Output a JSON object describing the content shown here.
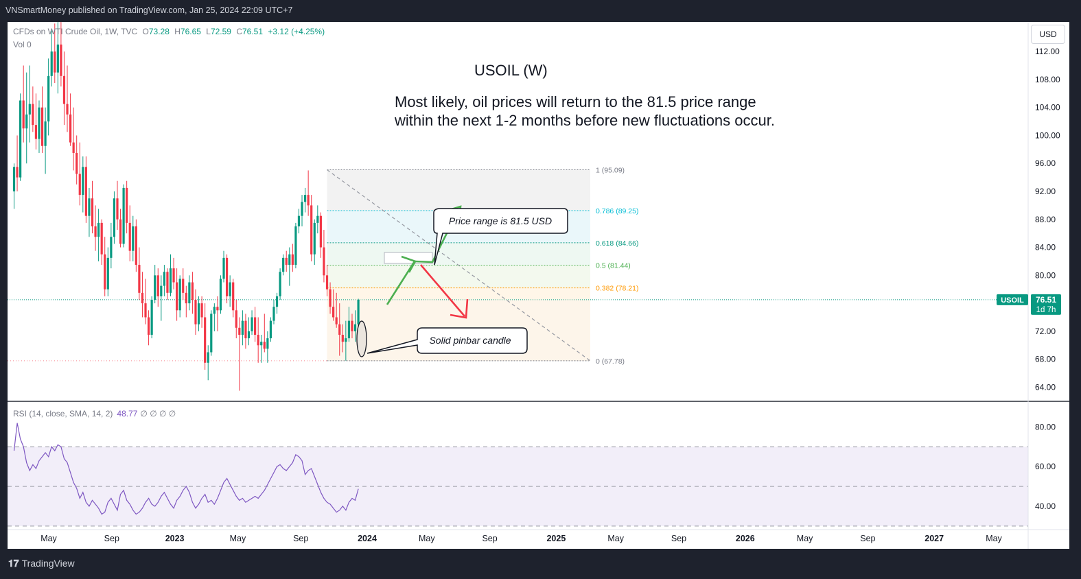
{
  "header": {
    "published": "VNSmartMoney published on TradingView.com, Jan 25, 2024 22:09 UTC+7"
  },
  "legend": {
    "symbol": "CFDs on WTI Crude Oil, 1W, TVC",
    "o_label": "O",
    "o": "73.28",
    "h_label": "H",
    "h": "76.65",
    "l_label": "L",
    "l": "72.59",
    "c_label": "C",
    "c": "76.51",
    "change": "+3.12 (+4.25%)",
    "vol": "Vol 0"
  },
  "currency_button": "USD",
  "annotation": {
    "title": "USOIL (W)",
    "line1": "Most likely, oil prices will return to the 81.5 price range",
    "line2": "within the next 1-2 months before new fluctuations occur."
  },
  "callouts": {
    "price_range": "Price range is 81.5 USD",
    "pinbar": "Solid pinbar candle"
  },
  "price_tag": {
    "symbol": "USOIL",
    "price": "76.51",
    "countdown": "1d 7h"
  },
  "rsi_legend": {
    "label": "RSI (14, close, SMA, 14, 2)",
    "value": "48.77",
    "nulls": "∅ ∅ ∅ ∅"
  },
  "footer": {
    "logo": "TradingView"
  },
  "colors": {
    "up": "#089981",
    "down": "#f23645",
    "rsi": "#7e57c2",
    "arrow_up": "#4caf50",
    "arrow_down": "#f23645"
  },
  "chart_data": {
    "type": "candlestick",
    "symbol": "USOIL",
    "interval": "1W",
    "price_axis": {
      "ticks": [
        "64.00",
        "68.00",
        "72.00",
        "76.00",
        "80.00",
        "84.00",
        "88.00",
        "92.00",
        "96.00",
        "100.00",
        "104.00",
        "108.00",
        "112.00"
      ],
      "ylim": [
        61.2,
        115.6
      ]
    },
    "time_axis": {
      "labels": [
        "May",
        "Sep",
        "2023",
        "May",
        "Sep",
        "2024",
        "May",
        "Sep",
        "2025",
        "May",
        "Sep",
        "2026",
        "May",
        "Sep",
        "2027",
        "May"
      ],
      "bold": [
        "2023",
        "2024",
        "2025",
        "2026",
        "2027"
      ]
    },
    "last_price": 76.51,
    "fibonacci": [
      {
        "level": "1",
        "price": 95.09,
        "label": "1 (95.09)",
        "color": "#787b86",
        "fill": "#f2f2f2"
      },
      {
        "level": "0.786",
        "price": 89.25,
        "label": "0.786 (89.25)",
        "color": "#00bcd4",
        "fill": "#eaf7fa"
      },
      {
        "level": "0.618",
        "price": 84.66,
        "label": "0.618 (84.66)",
        "color": "#089981",
        "fill": "#eef8f2"
      },
      {
        "level": "0.5",
        "price": 81.44,
        "label": "0.5 (81.44)",
        "color": "#4caf50",
        "fill": "#f3f9ee"
      },
      {
        "level": "0.382",
        "price": 78.21,
        "label": "0.382 (78.21)",
        "color": "#ff9800",
        "fill": "#fff6e8"
      },
      {
        "level": "0",
        "price": 67.78,
        "label": "0 (67.78)",
        "color": "#787b86",
        "fill": "#fdf5ea"
      }
    ],
    "candles": [
      {
        "o": 92.0,
        "h": 96.0,
        "l": 89.5,
        "c": 95.5
      },
      {
        "o": 95.5,
        "h": 100.0,
        "l": 92.0,
        "c": 94.0
      },
      {
        "o": 94.0,
        "h": 106.0,
        "l": 93.5,
        "c": 105.0
      },
      {
        "o": 105.0,
        "h": 110.0,
        "l": 99.0,
        "c": 101.0
      },
      {
        "o": 101.0,
        "h": 109.0,
        "l": 96.0,
        "c": 103.0
      },
      {
        "o": 103.0,
        "h": 110.0,
        "l": 99.0,
        "c": 104.5
      },
      {
        "o": 104.5,
        "h": 107.0,
        "l": 100.5,
        "c": 101.5
      },
      {
        "o": 101.5,
        "h": 106.0,
        "l": 98.0,
        "c": 99.5
      },
      {
        "o": 99.5,
        "h": 105.0,
        "l": 97.5,
        "c": 104.0
      },
      {
        "o": 104.0,
        "h": 107.0,
        "l": 97.5,
        "c": 98.5
      },
      {
        "o": 98.5,
        "h": 104.0,
        "l": 94.5,
        "c": 102.0
      },
      {
        "o": 102.0,
        "h": 111.0,
        "l": 100.0,
        "c": 108.5
      },
      {
        "o": 108.5,
        "h": 115.0,
        "l": 107.0,
        "c": 112.0
      },
      {
        "o": 112.0,
        "h": 116.0,
        "l": 107.5,
        "c": 109.0
      },
      {
        "o": 109.0,
        "h": 117.0,
        "l": 106.0,
        "c": 113.0
      },
      {
        "o": 113.0,
        "h": 117.0,
        "l": 107.0,
        "c": 108.5
      },
      {
        "o": 108.5,
        "h": 112.0,
        "l": 101.5,
        "c": 104.5
      },
      {
        "o": 104.5,
        "h": 110.0,
        "l": 100.5,
        "c": 103.0
      },
      {
        "o": 103.0,
        "h": 106.0,
        "l": 98.5,
        "c": 99.0
      },
      {
        "o": 99.0,
        "h": 104.0,
        "l": 95.0,
        "c": 97.5
      },
      {
        "o": 97.5,
        "h": 100.0,
        "l": 93.0,
        "c": 94.5
      },
      {
        "o": 94.5,
        "h": 99.0,
        "l": 90.0,
        "c": 91.5
      },
      {
        "o": 91.5,
        "h": 97.0,
        "l": 89.0,
        "c": 95.5
      },
      {
        "o": 95.5,
        "h": 97.0,
        "l": 87.5,
        "c": 88.5
      },
      {
        "o": 88.5,
        "h": 92.5,
        "l": 85.5,
        "c": 91.0
      },
      {
        "o": 91.0,
        "h": 93.5,
        "l": 86.0,
        "c": 87.0
      },
      {
        "o": 87.0,
        "h": 90.0,
        "l": 83.5,
        "c": 85.5
      },
      {
        "o": 85.5,
        "h": 89.5,
        "l": 82.0,
        "c": 87.5
      },
      {
        "o": 87.5,
        "h": 88.0,
        "l": 81.5,
        "c": 83.0
      },
      {
        "o": 83.0,
        "h": 85.5,
        "l": 77.0,
        "c": 78.0
      },
      {
        "o": 78.0,
        "h": 84.0,
        "l": 77.0,
        "c": 82.5
      },
      {
        "o": 82.5,
        "h": 87.5,
        "l": 81.0,
        "c": 85.5
      },
      {
        "o": 85.5,
        "h": 92.0,
        "l": 84.5,
        "c": 91.0
      },
      {
        "o": 91.0,
        "h": 93.5,
        "l": 86.5,
        "c": 88.0
      },
      {
        "o": 88.0,
        "h": 89.5,
        "l": 84.0,
        "c": 84.5
      },
      {
        "o": 84.5,
        "h": 93.0,
        "l": 84.0,
        "c": 92.5
      },
      {
        "o": 92.5,
        "h": 93.5,
        "l": 86.0,
        "c": 87.5
      },
      {
        "o": 87.5,
        "h": 90.0,
        "l": 82.0,
        "c": 83.5
      },
      {
        "o": 83.5,
        "h": 88.5,
        "l": 82.0,
        "c": 87.0
      },
      {
        "o": 87.0,
        "h": 88.0,
        "l": 80.5,
        "c": 81.5
      },
      {
        "o": 81.5,
        "h": 84.0,
        "l": 76.5,
        "c": 77.5
      },
      {
        "o": 77.5,
        "h": 80.5,
        "l": 74.0,
        "c": 76.0
      },
      {
        "o": 76.0,
        "h": 79.5,
        "l": 73.0,
        "c": 74.0
      },
      {
        "o": 74.0,
        "h": 75.0,
        "l": 70.0,
        "c": 71.5
      },
      {
        "o": 71.5,
        "h": 77.0,
        "l": 71.0,
        "c": 76.5
      },
      {
        "o": 76.5,
        "h": 81.5,
        "l": 76.0,
        "c": 80.0
      },
      {
        "o": 80.0,
        "h": 81.0,
        "l": 75.5,
        "c": 77.0
      },
      {
        "o": 77.0,
        "h": 80.0,
        "l": 73.5,
        "c": 78.5
      },
      {
        "o": 78.5,
        "h": 81.5,
        "l": 77.0,
        "c": 80.5
      },
      {
        "o": 80.5,
        "h": 81.0,
        "l": 76.5,
        "c": 77.5
      },
      {
        "o": 77.5,
        "h": 83.0,
        "l": 77.0,
        "c": 81.0
      },
      {
        "o": 81.0,
        "h": 82.5,
        "l": 78.0,
        "c": 79.0
      },
      {
        "o": 79.0,
        "h": 81.0,
        "l": 73.5,
        "c": 75.0
      },
      {
        "o": 75.0,
        "h": 80.0,
        "l": 74.0,
        "c": 79.5
      },
      {
        "o": 79.5,
        "h": 81.0,
        "l": 76.5,
        "c": 77.5
      },
      {
        "o": 77.5,
        "h": 78.5,
        "l": 74.0,
        "c": 76.0
      },
      {
        "o": 76.0,
        "h": 80.0,
        "l": 75.0,
        "c": 79.0
      },
      {
        "o": 79.0,
        "h": 80.5,
        "l": 74.5,
        "c": 76.5
      },
      {
        "o": 76.5,
        "h": 78.0,
        "l": 71.5,
        "c": 73.0
      },
      {
        "o": 73.0,
        "h": 77.0,
        "l": 72.0,
        "c": 76.0
      },
      {
        "o": 76.0,
        "h": 77.0,
        "l": 72.5,
        "c": 74.0
      },
      {
        "o": 74.0,
        "h": 76.0,
        "l": 66.5,
        "c": 67.5
      },
      {
        "o": 67.5,
        "h": 70.0,
        "l": 65.0,
        "c": 69.0
      },
      {
        "o": 69.0,
        "h": 75.0,
        "l": 68.5,
        "c": 74.5
      },
      {
        "o": 74.5,
        "h": 76.0,
        "l": 72.0,
        "c": 75.5
      },
      {
        "o": 75.5,
        "h": 77.0,
        "l": 72.0,
        "c": 75.0
      },
      {
        "o": 75.0,
        "h": 80.0,
        "l": 74.5,
        "c": 79.5
      },
      {
        "o": 79.5,
        "h": 83.5,
        "l": 79.0,
        "c": 82.5
      },
      {
        "o": 82.5,
        "h": 83.0,
        "l": 76.0,
        "c": 77.0
      },
      {
        "o": 77.0,
        "h": 80.0,
        "l": 75.5,
        "c": 79.0
      },
      {
        "o": 79.0,
        "h": 79.5,
        "l": 74.0,
        "c": 75.0
      },
      {
        "o": 75.0,
        "h": 76.5,
        "l": 71.0,
        "c": 72.5
      },
      {
        "o": 72.5,
        "h": 74.0,
        "l": 63.5,
        "c": 71.5
      },
      {
        "o": 71.5,
        "h": 75.0,
        "l": 70.0,
        "c": 73.5
      },
      {
        "o": 73.5,
        "h": 74.5,
        "l": 69.5,
        "c": 71.0
      },
      {
        "o": 71.0,
        "h": 74.0,
        "l": 70.0,
        "c": 72.0
      },
      {
        "o": 72.0,
        "h": 75.0,
        "l": 71.5,
        "c": 74.0
      },
      {
        "o": 74.0,
        "h": 75.5,
        "l": 70.5,
        "c": 71.5
      },
      {
        "o": 71.5,
        "h": 74.0,
        "l": 67.5,
        "c": 70.0
      },
      {
        "o": 70.0,
        "h": 71.5,
        "l": 67.5,
        "c": 70.5
      },
      {
        "o": 70.5,
        "h": 74.5,
        "l": 69.0,
        "c": 69.5
      },
      {
        "o": 69.5,
        "h": 72.0,
        "l": 67.5,
        "c": 71.0
      },
      {
        "o": 71.0,
        "h": 74.0,
        "l": 70.5,
        "c": 73.5
      },
      {
        "o": 73.5,
        "h": 76.5,
        "l": 73.0,
        "c": 75.5
      },
      {
        "o": 75.5,
        "h": 77.5,
        "l": 74.5,
        "c": 77.0
      },
      {
        "o": 77.0,
        "h": 81.0,
        "l": 76.5,
        "c": 80.5
      },
      {
        "o": 80.5,
        "h": 83.0,
        "l": 80.0,
        "c": 82.5
      },
      {
        "o": 82.5,
        "h": 83.5,
        "l": 80.5,
        "c": 81.5
      },
      {
        "o": 81.5,
        "h": 84.0,
        "l": 78.5,
        "c": 83.0
      },
      {
        "o": 83.0,
        "h": 84.5,
        "l": 80.5,
        "c": 81.5
      },
      {
        "o": 81.5,
        "h": 87.5,
        "l": 81.0,
        "c": 87.0
      },
      {
        "o": 87.0,
        "h": 89.5,
        "l": 86.0,
        "c": 88.5
      },
      {
        "o": 88.5,
        "h": 91.5,
        "l": 87.0,
        "c": 90.5
      },
      {
        "o": 90.5,
        "h": 92.5,
        "l": 89.0,
        "c": 91.5
      },
      {
        "o": 91.5,
        "h": 95.0,
        "l": 88.5,
        "c": 90.0
      },
      {
        "o": 90.0,
        "h": 91.5,
        "l": 82.0,
        "c": 83.0
      },
      {
        "o": 83.0,
        "h": 88.0,
        "l": 81.5,
        "c": 87.5
      },
      {
        "o": 87.5,
        "h": 90.0,
        "l": 86.0,
        "c": 88.5
      },
      {
        "o": 88.5,
        "h": 89.0,
        "l": 82.5,
        "c": 84.0
      },
      {
        "o": 84.0,
        "h": 86.5,
        "l": 79.0,
        "c": 80.0
      },
      {
        "o": 80.0,
        "h": 81.5,
        "l": 77.0,
        "c": 78.0
      },
      {
        "o": 78.0,
        "h": 79.0,
        "l": 74.5,
        "c": 75.5
      },
      {
        "o": 75.5,
        "h": 78.0,
        "l": 73.5,
        "c": 74.0
      },
      {
        "o": 74.0,
        "h": 77.5,
        "l": 72.5,
        "c": 73.0
      },
      {
        "o": 73.0,
        "h": 76.0,
        "l": 68.5,
        "c": 71.5
      },
      {
        "o": 71.5,
        "h": 73.0,
        "l": 69.0,
        "c": 70.5
      },
      {
        "o": 70.5,
        "h": 73.5,
        "l": 67.8,
        "c": 71.0
      },
      {
        "o": 71.0,
        "h": 75.5,
        "l": 70.5,
        "c": 73.5
      },
      {
        "o": 73.5,
        "h": 74.5,
        "l": 71.0,
        "c": 72.0
      },
      {
        "o": 72.0,
        "h": 75.0,
        "l": 70.5,
        "c": 73.0
      },
      {
        "o": 73.0,
        "h": 76.65,
        "l": 72.59,
        "c": 76.51
      }
    ],
    "rsi": {
      "label": "RSI (14, close, SMA, 14, 2)",
      "last": 48.77,
      "ylim": [
        26,
        86
      ],
      "ticks": [
        "40.00",
        "60.00",
        "80.00"
      ],
      "bands": [
        30,
        50,
        70
      ],
      "values": [
        68,
        82,
        74,
        70,
        62,
        58,
        61,
        59,
        63,
        65,
        67,
        65,
        70,
        68,
        71,
        70,
        64,
        62,
        57,
        52,
        49,
        44,
        47,
        42,
        40,
        43,
        41,
        39,
        36,
        37,
        42,
        44,
        41,
        38,
        46,
        48,
        43,
        41,
        38,
        36,
        37,
        39,
        42,
        44,
        41,
        40,
        42,
        45,
        47,
        44,
        41,
        39,
        43,
        45,
        48,
        50,
        47,
        42,
        39,
        41,
        44,
        46,
        42,
        43,
        41,
        44,
        48,
        52,
        54,
        51,
        48,
        45,
        43,
        44,
        42,
        43,
        44,
        45,
        44,
        46,
        48,
        51,
        54,
        57,
        60,
        61,
        59,
        58,
        60,
        62,
        66,
        65,
        63,
        56,
        58,
        59,
        55,
        51,
        47,
        44,
        42,
        41,
        39,
        37,
        38,
        40,
        38,
        42,
        44,
        43,
        48.77
      ]
    }
  }
}
